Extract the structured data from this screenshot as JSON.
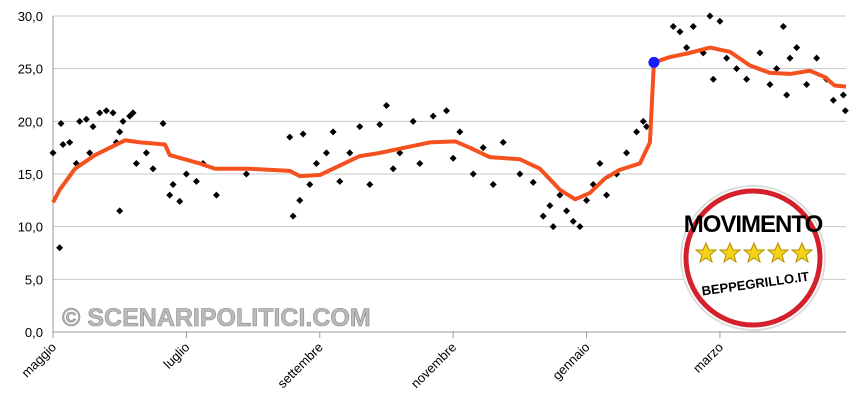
{
  "chart_data": {
    "type": "scatter",
    "ylim": [
      0,
      30
    ],
    "yticks": [
      {
        "value": 0,
        "label": "0,0"
      },
      {
        "value": 5,
        "label": "5,0"
      },
      {
        "value": 10,
        "label": "10,0"
      },
      {
        "value": 15,
        "label": "15,0"
      },
      {
        "value": 20,
        "label": "20,0"
      },
      {
        "value": 25,
        "label": "25,0"
      },
      {
        "value": 30,
        "label": "30,0"
      }
    ],
    "xlim": [
      0,
      11.89
    ],
    "xticks": [
      {
        "value": 0,
        "label": "maggio"
      },
      {
        "value": 2,
        "label": "luglio"
      },
      {
        "value": 4,
        "label": "settembre"
      },
      {
        "value": 6,
        "label": "novembre"
      },
      {
        "value": 8,
        "label": "gennaio"
      },
      {
        "value": 10,
        "label": "marzo"
      }
    ],
    "grid": true,
    "series": [
      {
        "type": "scatter",
        "color": "#000000",
        "x": [
          0.0,
          0.1,
          0.12,
          0.15,
          0.25,
          0.35,
          0.4,
          0.5,
          0.55,
          0.6,
          0.7,
          0.8,
          0.9,
          0.95,
          1.0,
          1.05,
          1.0,
          1.15,
          1.2,
          1.25,
          1.4,
          1.5,
          1.65,
          1.75,
          1.8,
          1.9,
          2.0,
          2.15,
          2.25,
          2.45,
          2.9,
          3.55,
          3.6,
          3.7,
          3.75,
          3.85,
          3.95,
          4.1,
          4.2,
          4.3,
          4.45,
          4.6,
          4.75,
          4.9,
          5.0,
          5.1,
          5.2,
          5.4,
          5.5,
          5.7,
          5.9,
          6.0,
          6.1,
          6.3,
          6.45,
          6.6,
          6.75,
          7.0,
          7.2,
          7.35,
          7.45,
          7.5,
          7.6,
          7.7,
          7.8,
          7.9,
          8.0,
          8.1,
          8.2,
          8.3,
          8.45,
          8.6,
          8.75,
          8.85,
          8.9,
          9.3,
          9.4,
          9.5,
          9.6,
          9.75,
          9.85,
          9.9,
          10.0,
          10.1,
          10.25,
          10.4,
          10.6,
          10.75,
          10.85,
          10.95,
          11.0,
          11.05,
          11.15,
          11.3,
          11.45,
          11.6,
          11.7,
          11.85,
          11.88
        ],
        "values": [
          17,
          8,
          19.8,
          17.8,
          18,
          16,
          20,
          20.2,
          17,
          19.5,
          20.8,
          21,
          20.8,
          18,
          19,
          20,
          11.5,
          20.5,
          20.8,
          16,
          17,
          15.5,
          19.8,
          13,
          14,
          12.4,
          15,
          14.3,
          16,
          13,
          15,
          18.5,
          11,
          12.5,
          18.8,
          14,
          16,
          17,
          19,
          14.3,
          17,
          19.5,
          14,
          19.7,
          21.5,
          15.5,
          17,
          20,
          16,
          20.5,
          21,
          16.5,
          19,
          15,
          17.5,
          14,
          18,
          15,
          14.2,
          11,
          12,
          10,
          13,
          11.5,
          10.5,
          10,
          12.5,
          14,
          16,
          13,
          15,
          17,
          19,
          20,
          19.5,
          29,
          28.5,
          27,
          29,
          26.5,
          30,
          24,
          29.5,
          26,
          25,
          24,
          26.5,
          23.5,
          25,
          29,
          22.5,
          26,
          27,
          23.5,
          26,
          24,
          22,
          22.5,
          21
        ]
      },
      {
        "type": "line",
        "color": "#f4511e",
        "x": [
          0,
          0.1,
          0.33,
          0.63,
          1.08,
          1.31,
          1.68,
          1.75,
          2.2,
          2.43,
          2.95,
          3.55,
          3.7,
          4.0,
          4.3,
          4.6,
          4.9,
          5.2,
          5.65,
          6.03,
          6.25,
          6.55,
          7.0,
          7.3,
          7.6,
          7.83,
          8.05,
          8.28,
          8.5,
          8.8,
          8.95,
          9.01,
          9.25,
          9.55,
          9.85,
          10.15,
          10.45,
          10.75,
          11.05,
          11.35,
          11.57,
          11.72,
          11.89
        ],
        "values": [
          12.3,
          13.5,
          15.5,
          16.8,
          18.2,
          18.0,
          17.8,
          16.8,
          16.0,
          15.5,
          15.5,
          15.3,
          14.8,
          14.9,
          15.8,
          16.7,
          17.0,
          17.4,
          18.0,
          18.1,
          17.5,
          16.6,
          16.4,
          15.5,
          13.5,
          12.6,
          13.2,
          14.6,
          15.4,
          16.0,
          18.0,
          25.6,
          26.1,
          26.5,
          27.0,
          26.6,
          25.3,
          24.6,
          24.5,
          24.8,
          24.2,
          23.4,
          23.3
        ]
      }
    ],
    "highlight": {
      "x": 9.01,
      "value": 25.6,
      "color": "#1a1aff"
    },
    "watermark": "© SCENARIPOLITICI.COM",
    "logo": {
      "title": "MOVIMENTO",
      "url": "BEPPEGRILLO.IT"
    }
  }
}
